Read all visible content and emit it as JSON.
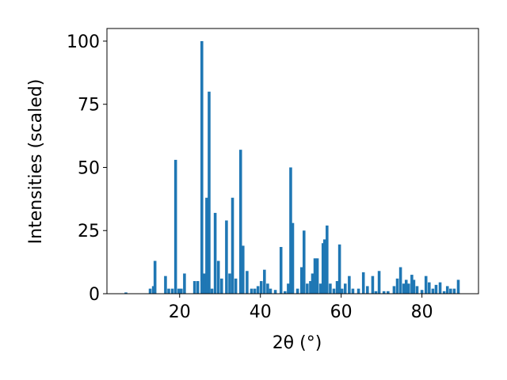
{
  "chart_data": {
    "type": "bar",
    "xlabel": "2θ (°)",
    "ylabel": "Intensities (scaled)",
    "color": "#1f77b4",
    "x": [
      6.7,
      12.7,
      13.5,
      13.9,
      16.5,
      17.3,
      18.2,
      19.0,
      19.8,
      20.4,
      21.2,
      23.7,
      24.5,
      25.5,
      26.1,
      26.7,
      27.3,
      28.0,
      28.8,
      29.6,
      30.4,
      31.6,
      32.4,
      33.1,
      33.9,
      35.1,
      35.7,
      36.7,
      37.8,
      38.6,
      39.4,
      40.2,
      41.0,
      41.8,
      42.5,
      43.7,
      45.1,
      46.1,
      46.9,
      47.5,
      48.0,
      49.2,
      50.2,
      50.8,
      51.6,
      52.4,
      52.9,
      53.5,
      54.1,
      54.9,
      55.5,
      55.9,
      56.5,
      57.3,
      58.2,
      59.0,
      59.6,
      60.2,
      61.0,
      62.0,
      62.9,
      64.3,
      65.5,
      66.5,
      67.8,
      68.6,
      69.4,
      70.6,
      71.6,
      73.1,
      73.9,
      74.7,
      75.5,
      76.1,
      76.7,
      77.5,
      78.0,
      78.8,
      80.0,
      81.0,
      81.8,
      82.7,
      83.5,
      84.5,
      85.5,
      86.3,
      87.1,
      88.0,
      89.0
    ],
    "values": [
      0.5,
      2,
      3,
      13,
      7,
      2,
      2,
      53,
      2,
      2,
      8,
      5,
      5,
      100,
      8,
      38,
      80,
      2,
      32,
      13,
      6,
      29,
      8,
      38,
      6,
      57,
      19,
      9,
      2,
      2,
      3,
      5,
      9.5,
      4,
      2,
      1.5,
      18.5,
      1,
      4,
      50,
      28,
      2,
      10.5,
      25,
      4,
      5,
      8,
      14,
      14,
      4,
      20,
      21.5,
      27,
      4,
      2,
      5,
      19.5,
      2,
      4,
      7,
      2,
      2,
      8.5,
      3,
      7,
      1,
      9,
      1,
      1,
      3,
      6,
      10.5,
      4,
      5.5,
      4,
      7.5,
      5.5,
      3,
      1.5,
      7,
      4.5,
      2,
      3.5,
      4.5,
      1,
      3,
      2,
      2,
      5.5
    ],
    "xlim": [
      2,
      94
    ],
    "ylim": [
      0,
      105
    ],
    "xticks": [
      20,
      40,
      60,
      80
    ],
    "yticks": [
      0,
      25,
      50,
      75,
      100
    ]
  }
}
